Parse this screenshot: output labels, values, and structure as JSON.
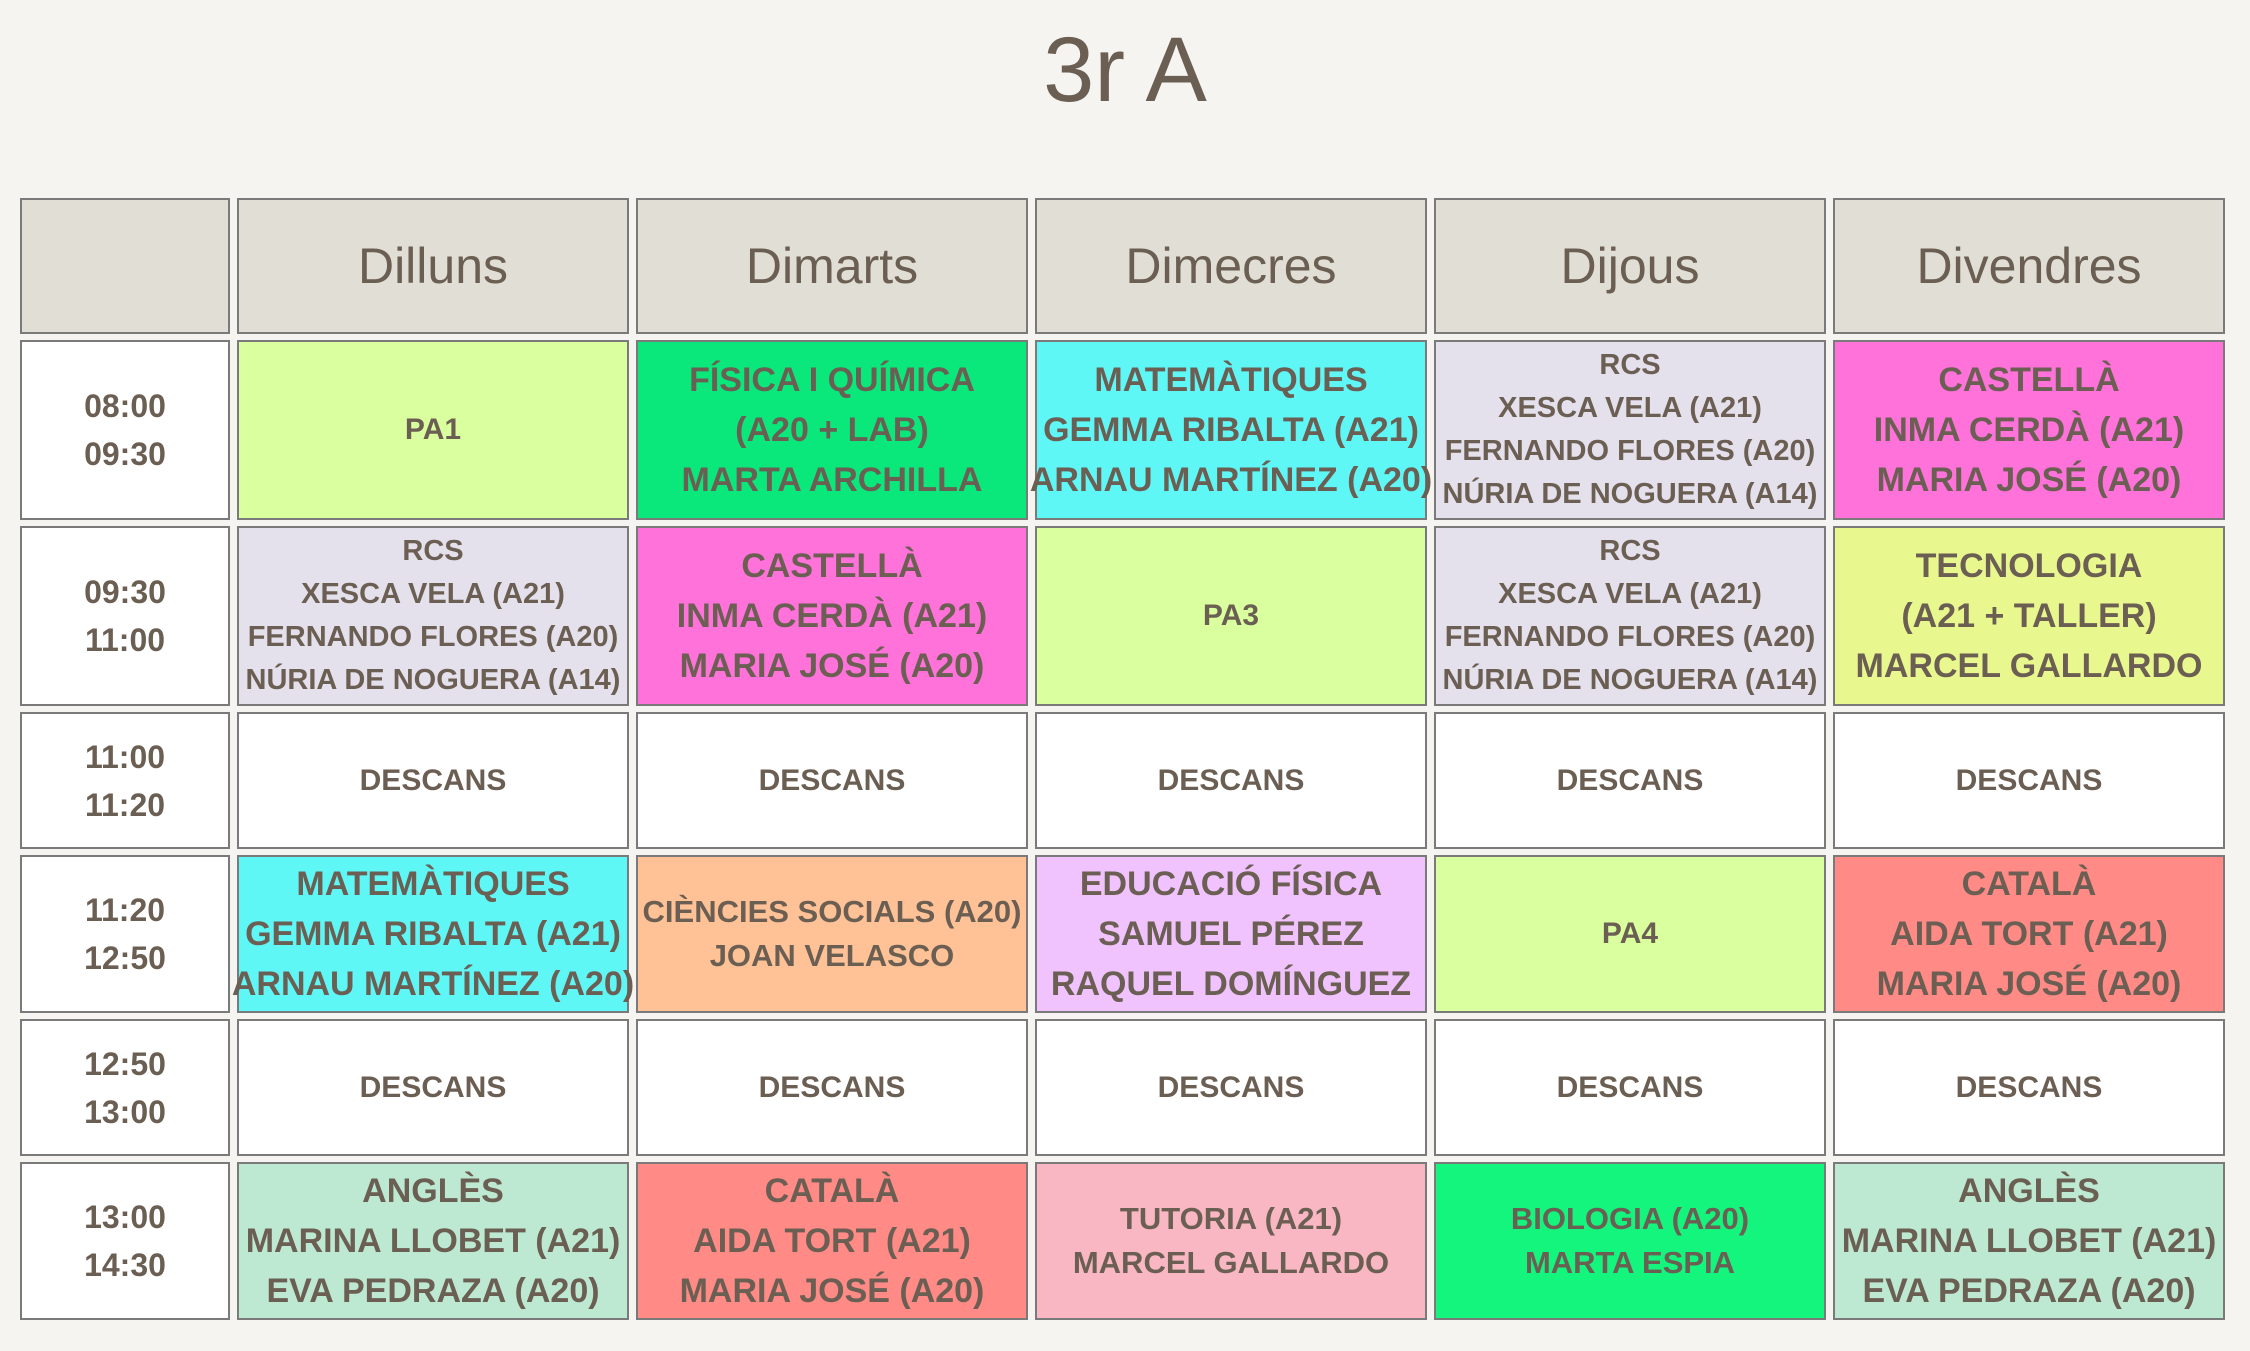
{
  "title": "3r A",
  "header": [
    "Dilluns",
    "Dimarts",
    "Dimecres",
    "Dijous",
    "Divendres"
  ],
  "rows": [
    {
      "time": [
        "08:00",
        "09:30"
      ],
      "cells": [
        {
          "lines": [
            "PA1"
          ],
          "color": "#d9ff9e"
        },
        {
          "lines": [
            "FÍSICA I QUÍMICA",
            "(A20 + LAB)",
            "MARTA ARCHILLA"
          ],
          "color": "#0ae87c"
        },
        {
          "lines": [
            "MATEMÀTIQUES",
            "GEMMA RIBALTA (A21)",
            "ARNAU MARTÍNEZ (A20)"
          ],
          "color": "#5ff6f6"
        },
        {
          "lines": [
            "RCS",
            "XESCA VELA (A21)",
            "FERNANDO FLORES (A20)",
            "NÚRIA DE NOGUERA (A14)"
          ],
          "color": "#e4e0ec"
        },
        {
          "lines": [
            "CASTELLÀ",
            "INMA CERDÀ (A21)",
            "MARIA JOSÉ (A20)"
          ],
          "color": "#ff72d9"
        }
      ]
    },
    {
      "time": [
        "09:30",
        "11:00"
      ],
      "cells": [
        {
          "lines": [
            "RCS",
            "XESCA VELA (A21)",
            "FERNANDO FLORES (A20)",
            "NÚRIA DE NOGUERA (A14)"
          ],
          "color": "#e4e0ec"
        },
        {
          "lines": [
            "CASTELLÀ",
            "INMA CERDÀ (A21)",
            "MARIA JOSÉ (A20)"
          ],
          "color": "#ff72d9"
        },
        {
          "lines": [
            "PA3"
          ],
          "color": "#d9ff9e"
        },
        {
          "lines": [
            "RCS",
            "XESCA VELA (A21)",
            "FERNANDO FLORES (A20)",
            "NÚRIA DE NOGUERA (A14)"
          ],
          "color": "#e4e0ec"
        },
        {
          "lines": [
            "TECNOLOGIA",
            "(A21 + TALLER)",
            "MARCEL GALLARDO"
          ],
          "color": "#e9f78f"
        }
      ]
    },
    {
      "time": [
        "11:00",
        "11:20"
      ],
      "cells": [
        {
          "lines": [
            "DESCANS"
          ],
          "color": "#ffffff"
        },
        {
          "lines": [
            "DESCANS"
          ],
          "color": "#ffffff"
        },
        {
          "lines": [
            "DESCANS"
          ],
          "color": "#ffffff"
        },
        {
          "lines": [
            "DESCANS"
          ],
          "color": "#ffffff"
        },
        {
          "lines": [
            "DESCANS"
          ],
          "color": "#ffffff"
        }
      ]
    },
    {
      "time": [
        "11:20",
        "12:50"
      ],
      "cells": [
        {
          "lines": [
            "MATEMÀTIQUES",
            "GEMMA RIBALTA (A21)",
            "ARNAU MARTÍNEZ (A20)"
          ],
          "color": "#5ff6f6"
        },
        {
          "lines": [
            "CIÈNCIES SOCIALS (A20)",
            "JOAN VELASCO"
          ],
          "color": "#ffc196"
        },
        {
          "lines": [
            "EDUCACIÓ FÍSICA",
            "SAMUEL PÉREZ",
            "RAQUEL DOMÍNGUEZ"
          ],
          "color": "#f0c3ff"
        },
        {
          "lines": [
            "PA4"
          ],
          "color": "#d9ff9e"
        },
        {
          "lines": [
            "CATALÀ",
            "AIDA TORT (A21)",
            "MARIA JOSÉ (A20)"
          ],
          "color": "#ff8a86"
        }
      ]
    },
    {
      "time": [
        "12:50",
        "13:00"
      ],
      "cells": [
        {
          "lines": [
            "DESCANS"
          ],
          "color": "#ffffff"
        },
        {
          "lines": [
            "DESCANS"
          ],
          "color": "#ffffff"
        },
        {
          "lines": [
            "DESCANS"
          ],
          "color": "#ffffff"
        },
        {
          "lines": [
            "DESCANS"
          ],
          "color": "#ffffff"
        },
        {
          "lines": [
            "DESCANS"
          ],
          "color": "#ffffff"
        }
      ]
    },
    {
      "time": [
        "13:00",
        "14:30"
      ],
      "cells": [
        {
          "lines": [
            "ANGLÈS",
            "MARINA LLOBET (A21)",
            "EVA PEDRAZA (A20)"
          ],
          "color": "#bde9d3"
        },
        {
          "lines": [
            "CATALÀ",
            "AIDA TORT (A21)",
            "MARIA JOSÉ (A20)"
          ],
          "color": "#ff8a86"
        },
        {
          "lines": [
            "TUTORIA (A21)",
            "MARCEL GALLARDO"
          ],
          "color": "#f9b7c3"
        },
        {
          "lines": [
            "BIOLOGIA (A20)",
            "MARTA ESPIA"
          ],
          "color": "#14f57e"
        },
        {
          "lines": [
            "ANGLÈS",
            "MARINA LLOBET (A21)",
            "EVA PEDRAZA (A20)"
          ],
          "color": "#bde9d3"
        }
      ]
    }
  ]
}
